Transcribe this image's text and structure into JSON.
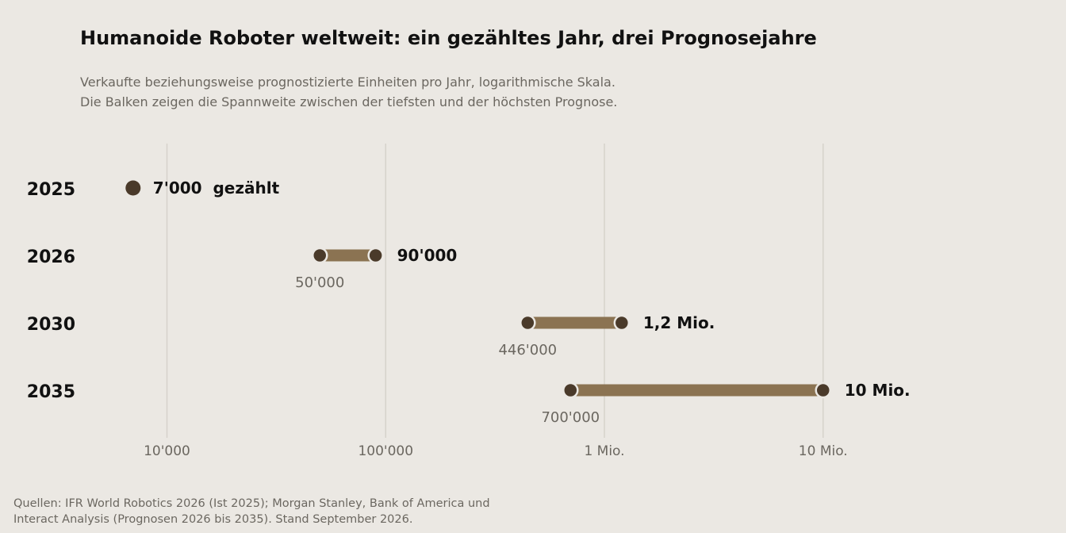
{
  "title": "Humanoide Roboter weltweit: ein gezähltes Jahr, drei Prognosejahre",
  "subtitle_lines": [
    "Verkaufte beziehungsweise prognostizierte Einheiten pro Jahr, logarithmische Skala.",
    "Die Balken zeigen die Spannweite zwischen der tiefsten und der höchsten Prognose."
  ],
  "source_lines": [
    "Quellen: IFR World Robotics 2026 (Ist 2025); Morgan Stanley, Bank of America und",
    "Interact Analysis (Prognosen 2026 bis 2035). Stand September 2026."
  ],
  "colors": {
    "background": "#ebe8e3",
    "bar": "#8b7352",
    "dot": "#4a3a2a",
    "grid": "#d6d2cb",
    "text_dark": "#111111",
    "text_muted": "#6b6760"
  },
  "chart_data": {
    "type": "range-dot",
    "scale": "log",
    "xlim": [
      3600,
      24000000
    ],
    "grid": true,
    "ticks": [
      {
        "value": 10000,
        "label": "10'000"
      },
      {
        "value": 100000,
        "label": "100'000"
      },
      {
        "value": 1000000,
        "label": "1 Mio."
      },
      {
        "value": 10000000,
        "label": "10 Mio."
      }
    ],
    "rows": [
      {
        "year": "2025",
        "value": 7000,
        "label": "7'000  gezählt"
      },
      {
        "year": "2026",
        "low": 50000,
        "high": 90000,
        "low_label": "50'000",
        "high_label": "90'000"
      },
      {
        "year": "2030",
        "low": 446000,
        "high": 1200000,
        "low_label": "446'000",
        "high_label": "1,2 Mio."
      },
      {
        "year": "2035",
        "low": 700000,
        "high": 10000000,
        "low_label": "700'000",
        "high_label": "10 Mio."
      }
    ]
  }
}
